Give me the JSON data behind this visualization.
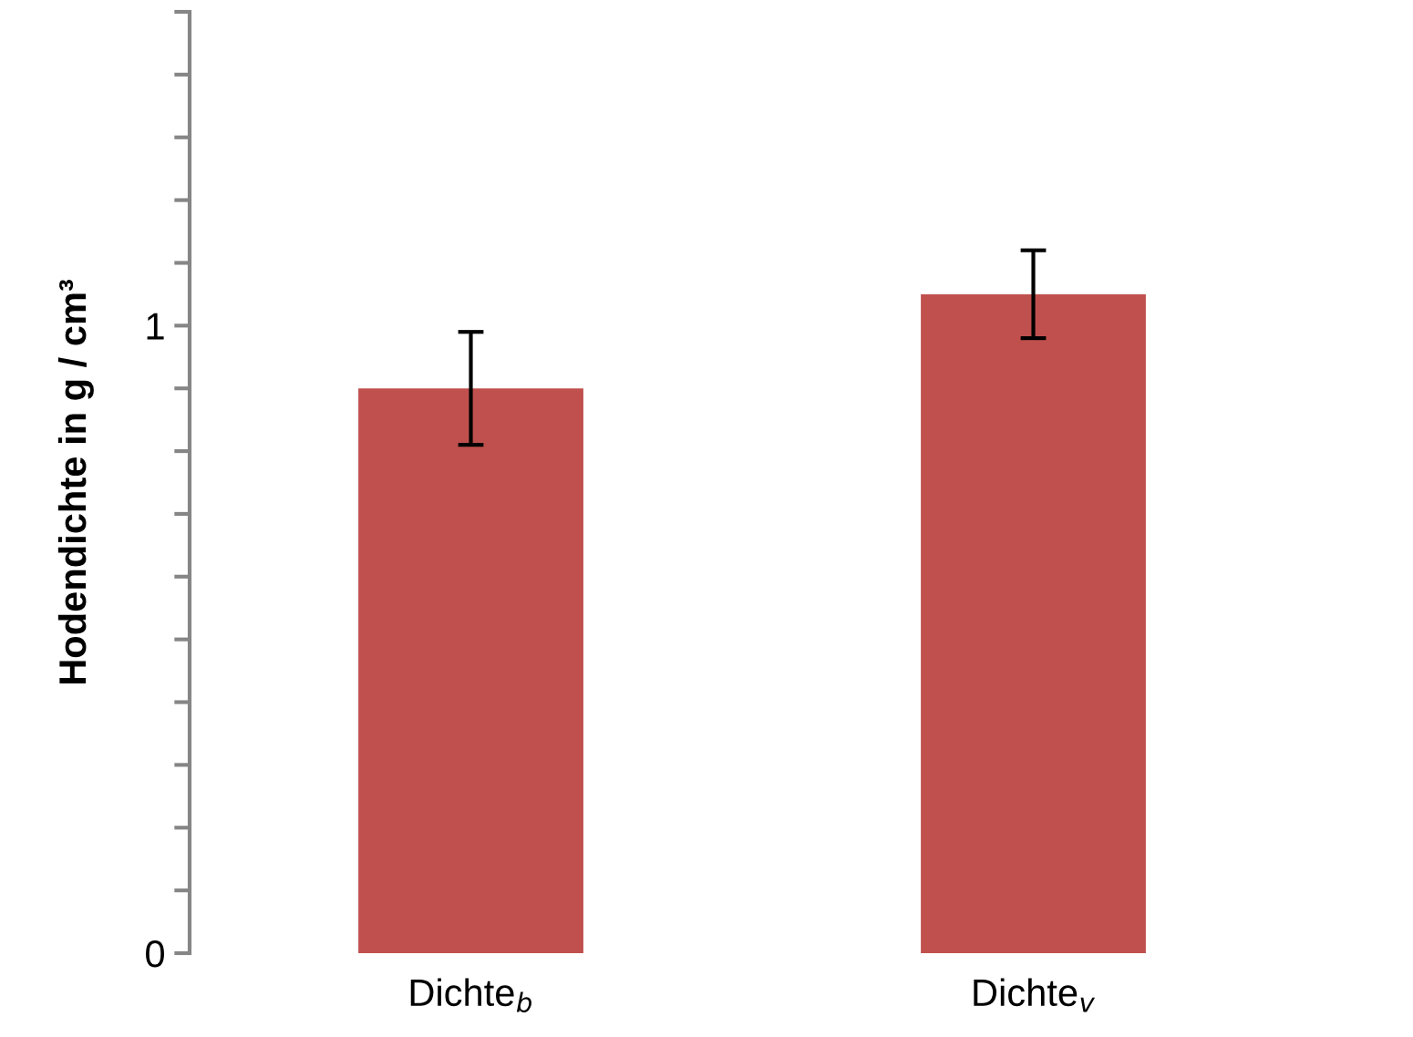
{
  "chart_data": {
    "type": "bar",
    "ylabel": "Hodendichte in g / cm³",
    "categories": [
      "Dichte$_{b}$",
      "Dichte$_{v}$"
    ],
    "values": [
      0.9,
      1.05
    ],
    "errors": [
      0.09,
      0.07
    ],
    "color": "#c0504d",
    "ylim": [
      0,
      1.5
    ],
    "yticks": [
      0,
      {
        "value": 0.1,
        "label": null
      },
      {
        "value": 0.2,
        "label": null
      },
      {
        "value": 0.3,
        "label": null
      },
      {
        "value": 0.4,
        "label": null
      },
      {
        "value": 0.5,
        "label": null
      },
      {
        "value": 0.6,
        "label": null
      },
      {
        "value": 0.7,
        "label": null
      },
      {
        "value": 0.8,
        "label": null
      },
      {
        "value": 0.9,
        "label": null
      },
      1,
      {
        "value": 1.1,
        "label": null
      },
      {
        "value": 1.2,
        "label": null
      },
      {
        "value": 1.3,
        "label": null
      },
      {
        "value": 1.4,
        "label": null
      },
      {
        "value": 1.5,
        "label": null
      }
    ],
    "grid": false,
    "legend": false
  }
}
